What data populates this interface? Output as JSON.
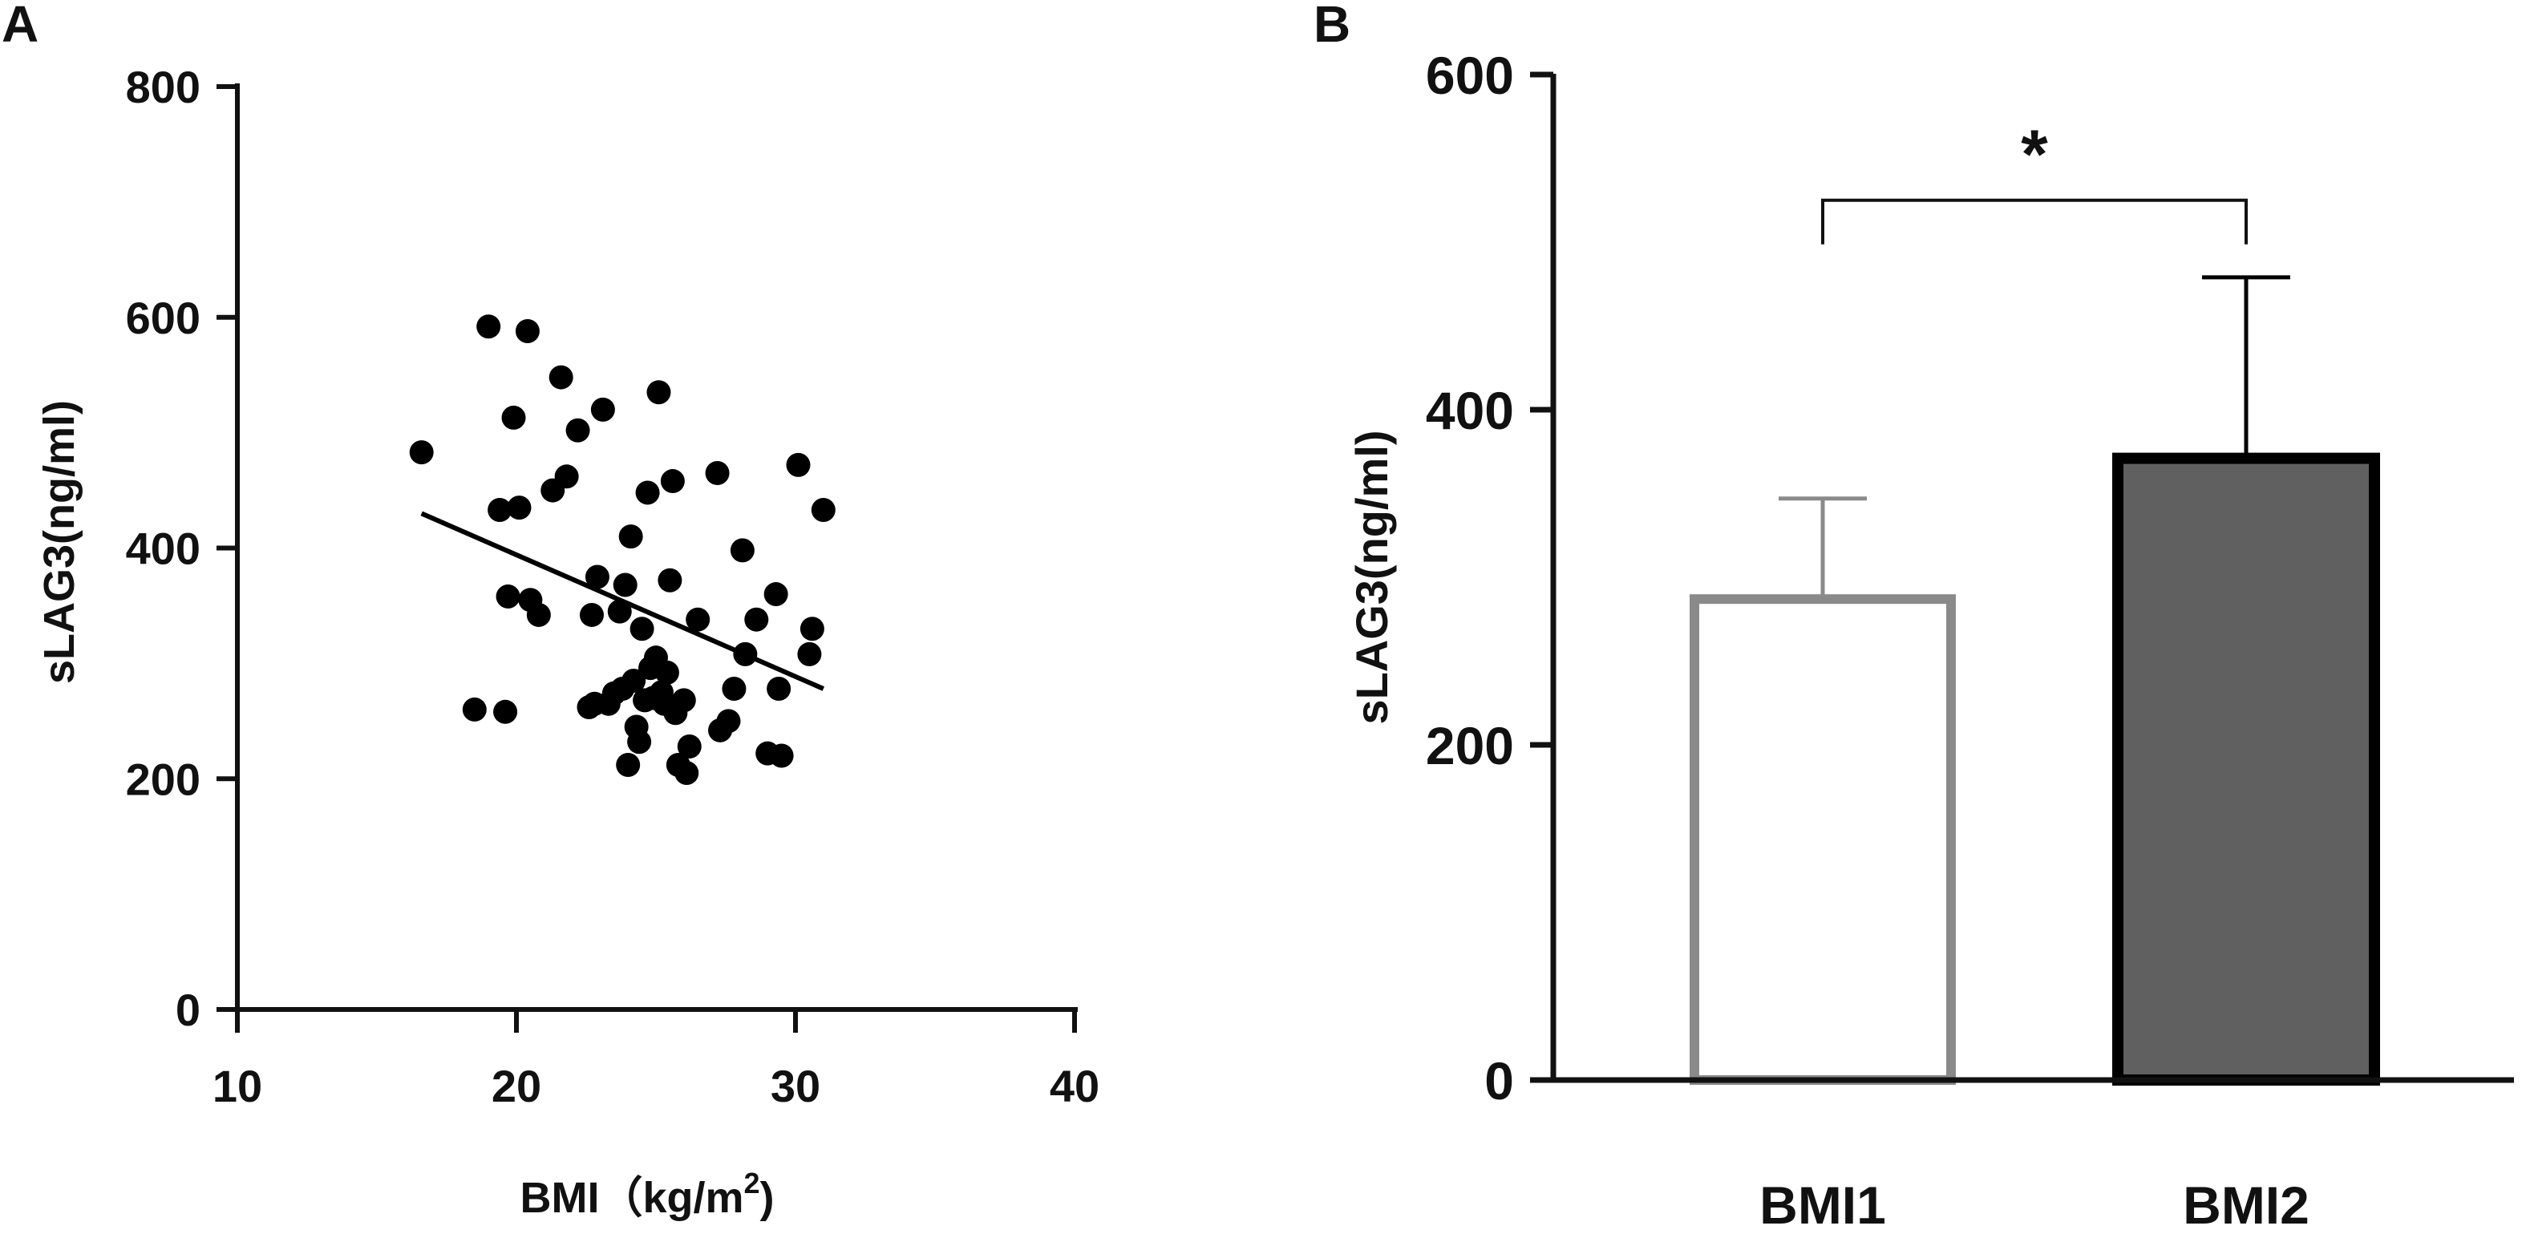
{
  "panels": {
    "a": "A",
    "b": "B"
  },
  "chart_data": [
    {
      "type": "scatter",
      "title": "",
      "xlabel_main": "BMI",
      "xlabel_unit": "kg/m",
      "xlabel_sup": "2",
      "xlabel_close": "",
      "ylabel": "sLAG3(ng/ml)",
      "xlim": [
        10,
        40
      ],
      "ylim": [
        0,
        800
      ],
      "xticks": [
        "10",
        "20",
        "30",
        "40"
      ],
      "yticks": [
        "0",
        "200",
        "400",
        "600",
        "800"
      ],
      "grid": false,
      "legend": "none",
      "points": [
        [
          16.6,
          483
        ],
        [
          18.5,
          260
        ],
        [
          19.0,
          592
        ],
        [
          19.4,
          433
        ],
        [
          19.6,
          258
        ],
        [
          19.7,
          358
        ],
        [
          19.9,
          513
        ],
        [
          20.1,
          435
        ],
        [
          20.4,
          588
        ],
        [
          20.5,
          355
        ],
        [
          20.8,
          342
        ],
        [
          21.3,
          450
        ],
        [
          21.6,
          548
        ],
        [
          21.8,
          462
        ],
        [
          22.2,
          502
        ],
        [
          22.6,
          262
        ],
        [
          22.7,
          342
        ],
        [
          22.8,
          265
        ],
        [
          22.9,
          375
        ],
        [
          23.1,
          520
        ],
        [
          23.3,
          265
        ],
        [
          23.5,
          274
        ],
        [
          23.7,
          345
        ],
        [
          23.8,
          278
        ],
        [
          23.9,
          368
        ],
        [
          24.0,
          212
        ],
        [
          24.1,
          410
        ],
        [
          24.2,
          285
        ],
        [
          24.3,
          245
        ],
        [
          24.4,
          232
        ],
        [
          24.5,
          330
        ],
        [
          24.6,
          268
        ],
        [
          24.7,
          448
        ],
        [
          24.8,
          296
        ],
        [
          24.9,
          270
        ],
        [
          25.0,
          305
        ],
        [
          25.1,
          535
        ],
        [
          25.2,
          275
        ],
        [
          25.3,
          265
        ],
        [
          25.4,
          292
        ],
        [
          25.5,
          372
        ],
        [
          25.6,
          458
        ],
        [
          25.7,
          257
        ],
        [
          25.8,
          212
        ],
        [
          26.0,
          268
        ],
        [
          26.1,
          205
        ],
        [
          26.2,
          228
        ],
        [
          26.5,
          338
        ],
        [
          27.2,
          465
        ],
        [
          27.3,
          242
        ],
        [
          27.6,
          250
        ],
        [
          27.8,
          278
        ],
        [
          28.1,
          398
        ],
        [
          28.2,
          308
        ],
        [
          28.6,
          338
        ],
        [
          29.0,
          222
        ],
        [
          29.3,
          360
        ],
        [
          29.4,
          278
        ],
        [
          29.5,
          220
        ],
        [
          30.1,
          472
        ],
        [
          30.5,
          308
        ],
        [
          30.6,
          330
        ],
        [
          31.0,
          433
        ]
      ],
      "regression": {
        "x": [
          16.6,
          31.0
        ],
        "y": [
          430,
          278
        ]
      },
      "colors": {
        "points": "#000000",
        "line": "#000000",
        "axis": "#111111"
      }
    },
    {
      "type": "bar",
      "title": "",
      "xlabel": "",
      "ylabel": "sLAG3(ng/ml)",
      "categories": [
        "BMI1",
        "BMI2"
      ],
      "values": [
        287,
        371
      ],
      "error_upper": [
        347,
        479
      ],
      "ylim": [
        0,
        600
      ],
      "yticks": [
        "0",
        "200",
        "400",
        "600"
      ],
      "significance": {
        "label": "*",
        "between": [
          "BMI1",
          "BMI2"
        ],
        "level": 525
      },
      "grid": false,
      "legend": "none",
      "colors": {
        "bar_fill": [
          "#ffffff",
          "#606060"
        ],
        "bar_edge": [
          "#8a8a8a",
          "#000000"
        ],
        "axis": "#111111"
      }
    }
  ]
}
